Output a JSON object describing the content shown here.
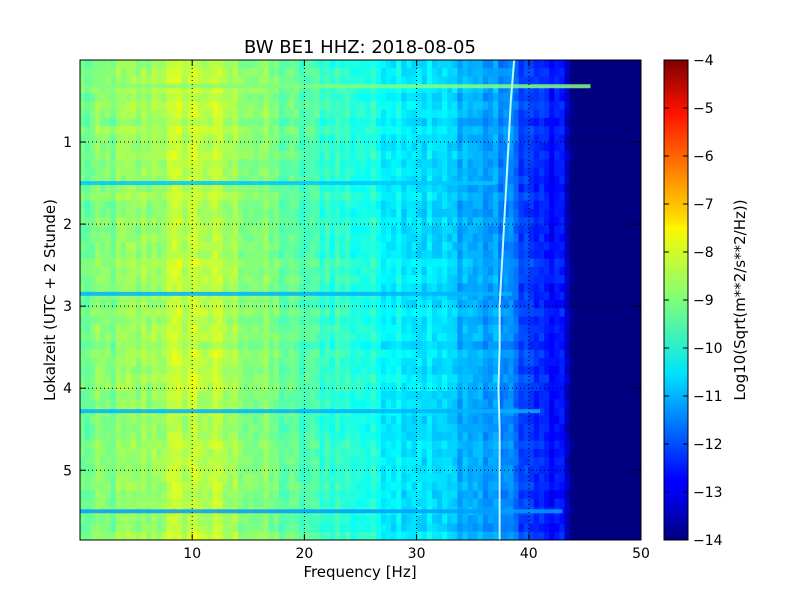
{
  "chart_data": {
    "type": "heatmap",
    "title": "BW BE1 HHZ: 2018-08-05",
    "xlabel": "Frequency [Hz]",
    "ylabel": "Lokalzeit (UTC + 2 Stunde)",
    "xlim": [
      0,
      50
    ],
    "ylim": [
      5.85,
      0
    ],
    "x_ticks": [
      10,
      20,
      30,
      40,
      50
    ],
    "y_ticks": [
      1,
      2,
      3,
      4,
      5
    ],
    "grid": true,
    "colorbar": {
      "label": "Log10(Sqrt(m**2/s**2/Hz))",
      "range": [
        -14,
        -4
      ],
      "ticks": [
        -4,
        -5,
        -6,
        -7,
        -8,
        -9,
        -10,
        -11,
        -12,
        -13,
        -14
      ],
      "colormap": "jet"
    },
    "spectrum_profile": [
      {
        "f": 0,
        "level": -9.2
      },
      {
        "f": 5,
        "level": -8.8
      },
      {
        "f": 10,
        "level": -8.3
      },
      {
        "f": 15,
        "level": -8.8
      },
      {
        "f": 20,
        "level": -9.5
      },
      {
        "f": 25,
        "level": -9.9
      },
      {
        "f": 30,
        "level": -10.4
      },
      {
        "f": 35,
        "level": -11.0
      },
      {
        "f": 38,
        "level": -11.4
      },
      {
        "f": 40,
        "level": -12.2
      },
      {
        "f": 43,
        "level": -12.8
      },
      {
        "f": 44,
        "level": -14.0
      },
      {
        "f": 50,
        "level": -14.0
      }
    ],
    "spectral_line": [
      {
        "t": 0.0,
        "f": 38.7
      },
      {
        "t": 0.5,
        "f": 38.4
      },
      {
        "t": 1.0,
        "f": 38.2
      },
      {
        "t": 1.5,
        "f": 38.0
      },
      {
        "t": 2.0,
        "f": 37.8
      },
      {
        "t": 2.5,
        "f": 37.6
      },
      {
        "t": 3.0,
        "f": 37.4
      },
      {
        "t": 3.5,
        "f": 37.4
      },
      {
        "t": 4.0,
        "f": 37.3
      },
      {
        "t": 4.5,
        "f": 37.4
      },
      {
        "t": 5.0,
        "f": 37.4
      },
      {
        "t": 5.5,
        "f": 37.4
      },
      {
        "t": 5.85,
        "f": 37.4
      }
    ],
    "horizontal_bands": [
      {
        "t": 0.32,
        "f_max": 45.5,
        "level": -9.0
      },
      {
        "t": 1.5,
        "f_max": 37.0,
        "level": -10.8
      },
      {
        "t": 2.85,
        "f_max": 38.5,
        "level": -11.0
      },
      {
        "t": 4.28,
        "f_max": 41.0,
        "level": -11.0
      },
      {
        "t": 5.5,
        "f_max": 43.0,
        "level": -11.2
      }
    ]
  }
}
